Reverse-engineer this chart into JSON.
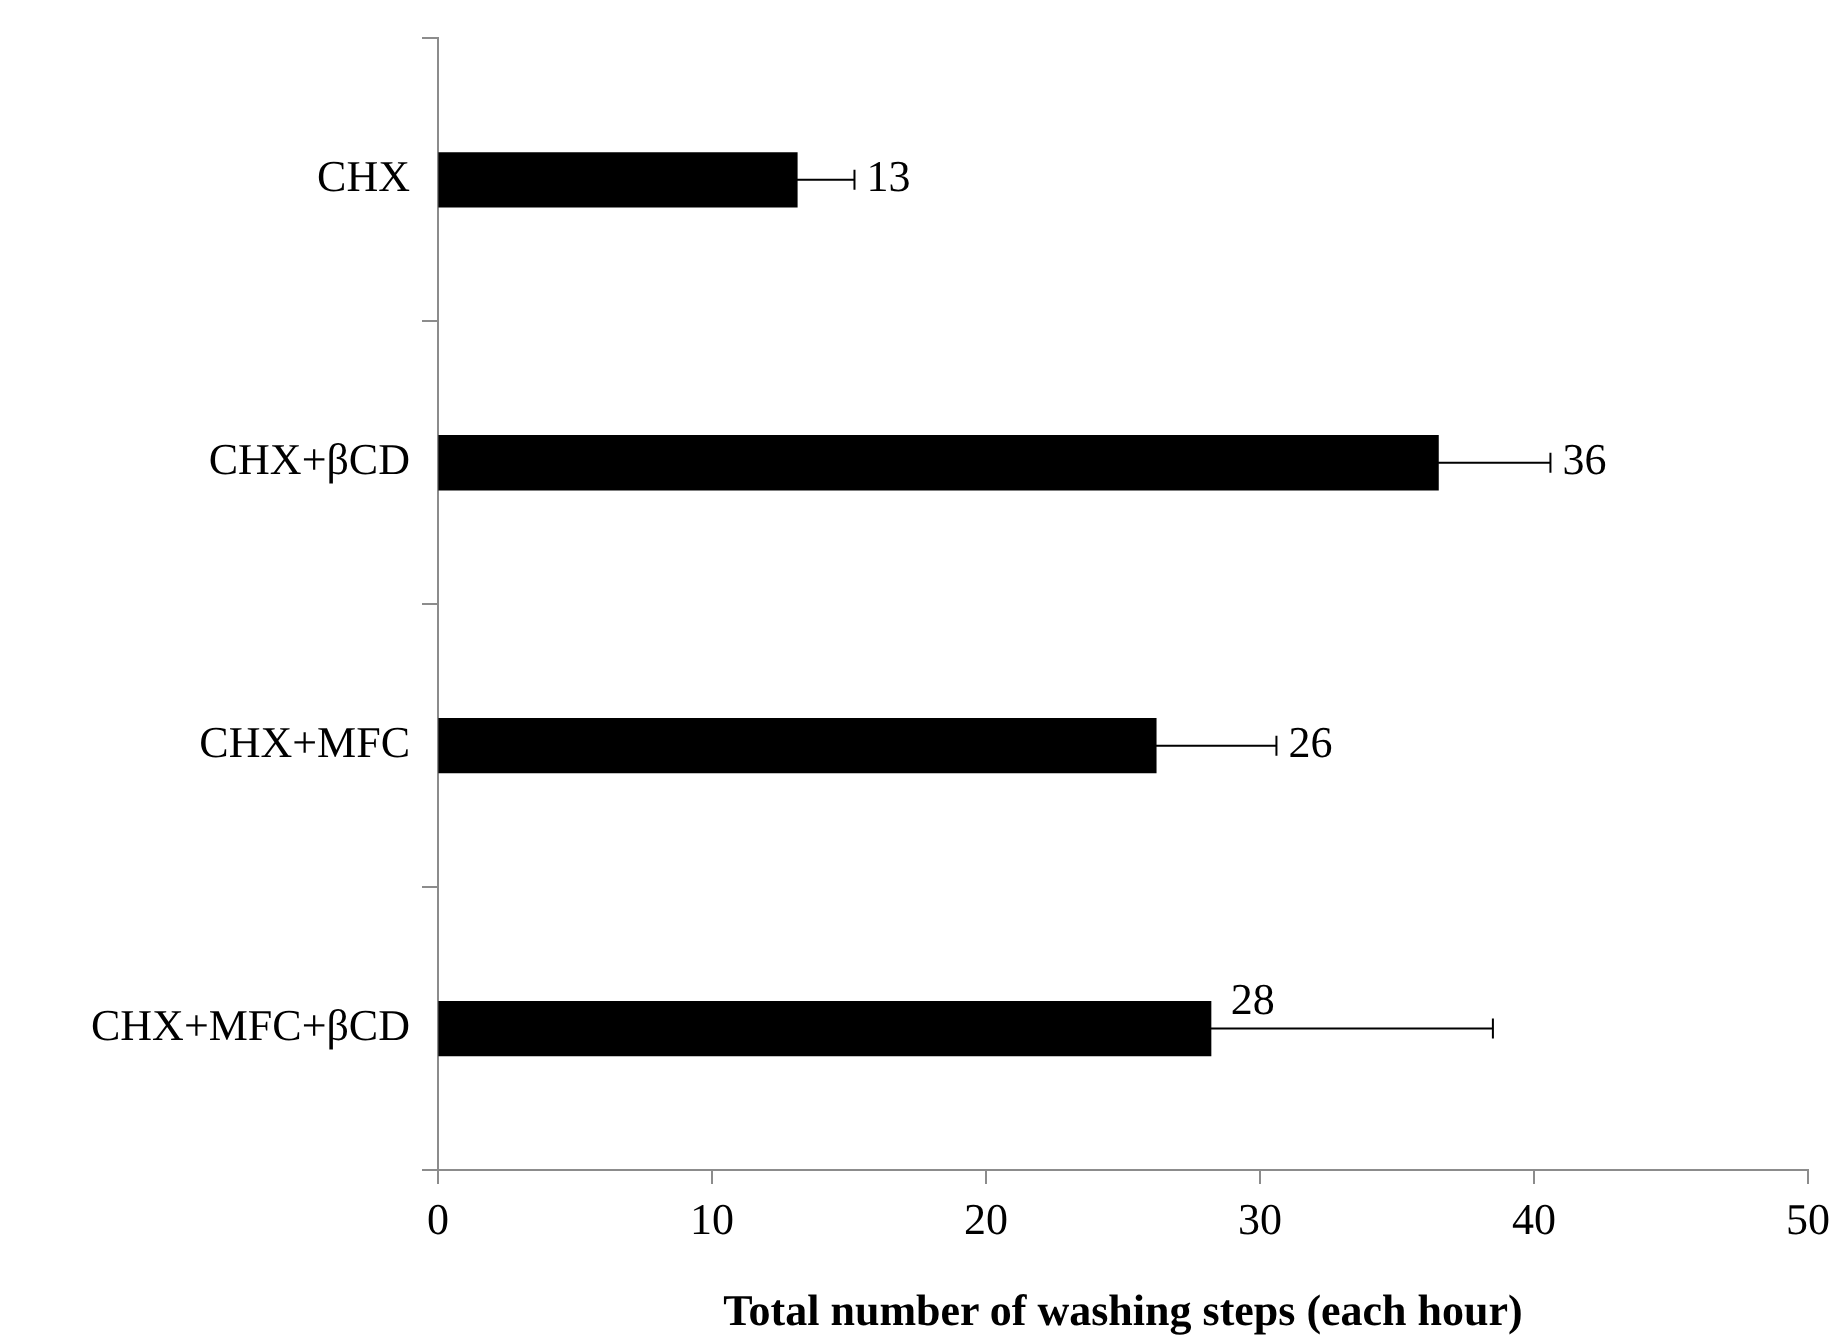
{
  "chart_data": {
    "type": "bar",
    "orientation": "horizontal",
    "xlabel": "Total number of washing steps (each hour)",
    "categories": [
      "CHX",
      "CHX+βCD",
      "CHX+MFC",
      "CHX+MFC+βCD"
    ],
    "values": [
      13.1,
      36.5,
      26.2,
      28.2
    ],
    "color": "#000000",
    "errors": [
      [
        13.1,
        15.2
      ],
      [
        36.5,
        40.6
      ],
      [
        26.2,
        30.6
      ],
      [
        28.2,
        38.5
      ]
    ],
    "value_labels": [
      "13",
      "36",
      "26",
      "28"
    ],
    "xlim": [
      0,
      50
    ],
    "xticks": [
      0,
      10,
      20,
      30,
      40,
      50
    ],
    "grid": false,
    "legend": false
  }
}
